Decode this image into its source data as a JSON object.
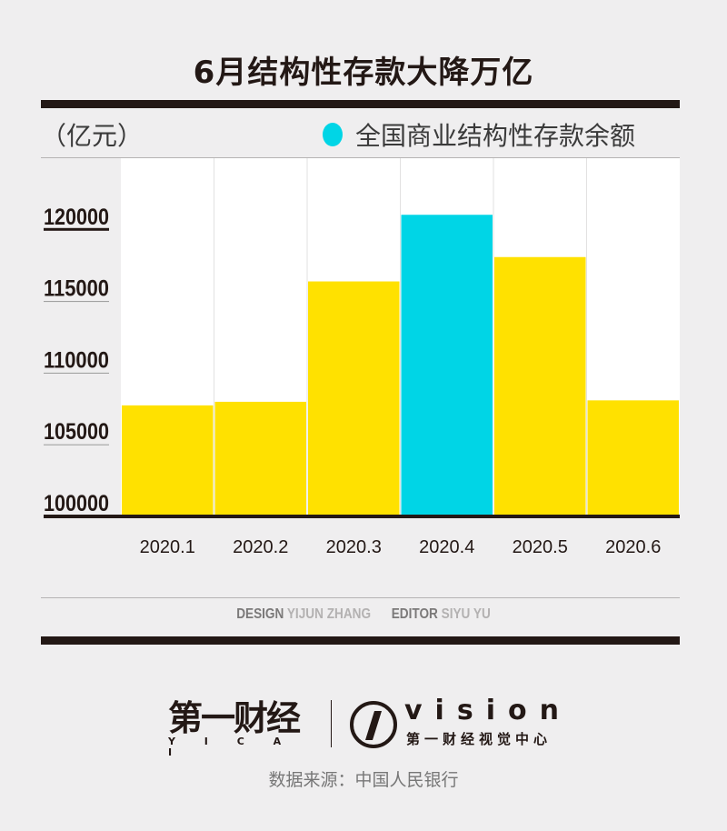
{
  "title": "6月结构性存款大降万亿",
  "unit_label": "（亿元）",
  "legend": {
    "label": "全国商业结构性存款余额",
    "color": "#00d5e6"
  },
  "chart_data": {
    "type": "bar",
    "title": "6月结构性存款大降万亿",
    "ylabel": "（亿元）",
    "xlabel": "",
    "categories": [
      "2020.1",
      "2020.2",
      "2020.3",
      "2020.4",
      "2020.5",
      "2020.6"
    ],
    "series": [
      {
        "name": "全国商业结构性存款余额",
        "values": [
          107750,
          108000,
          116400,
          121050,
          118100,
          108100
        ]
      }
    ],
    "highlight_index": 3,
    "colors": {
      "default": "#ffe100",
      "highlight": "#00d5e6"
    },
    "yticks": [
      100000,
      105000,
      110000,
      115000,
      120000
    ],
    "ylim": [
      100000,
      125000
    ],
    "grid": "vertical column separators",
    "legend_position": "top-right"
  },
  "credits": {
    "design_key": "DESIGN",
    "design_name": "YIJUN ZHANG",
    "editor_key": "EDITOR",
    "editor_name": "SIYU YU"
  },
  "logos": {
    "yicai_cn": "第一财经",
    "yicai_en": "Y I C A I",
    "vision": "vision",
    "vision_cn": "第一财经视觉中心"
  },
  "source": "数据来源：中国人民银行"
}
